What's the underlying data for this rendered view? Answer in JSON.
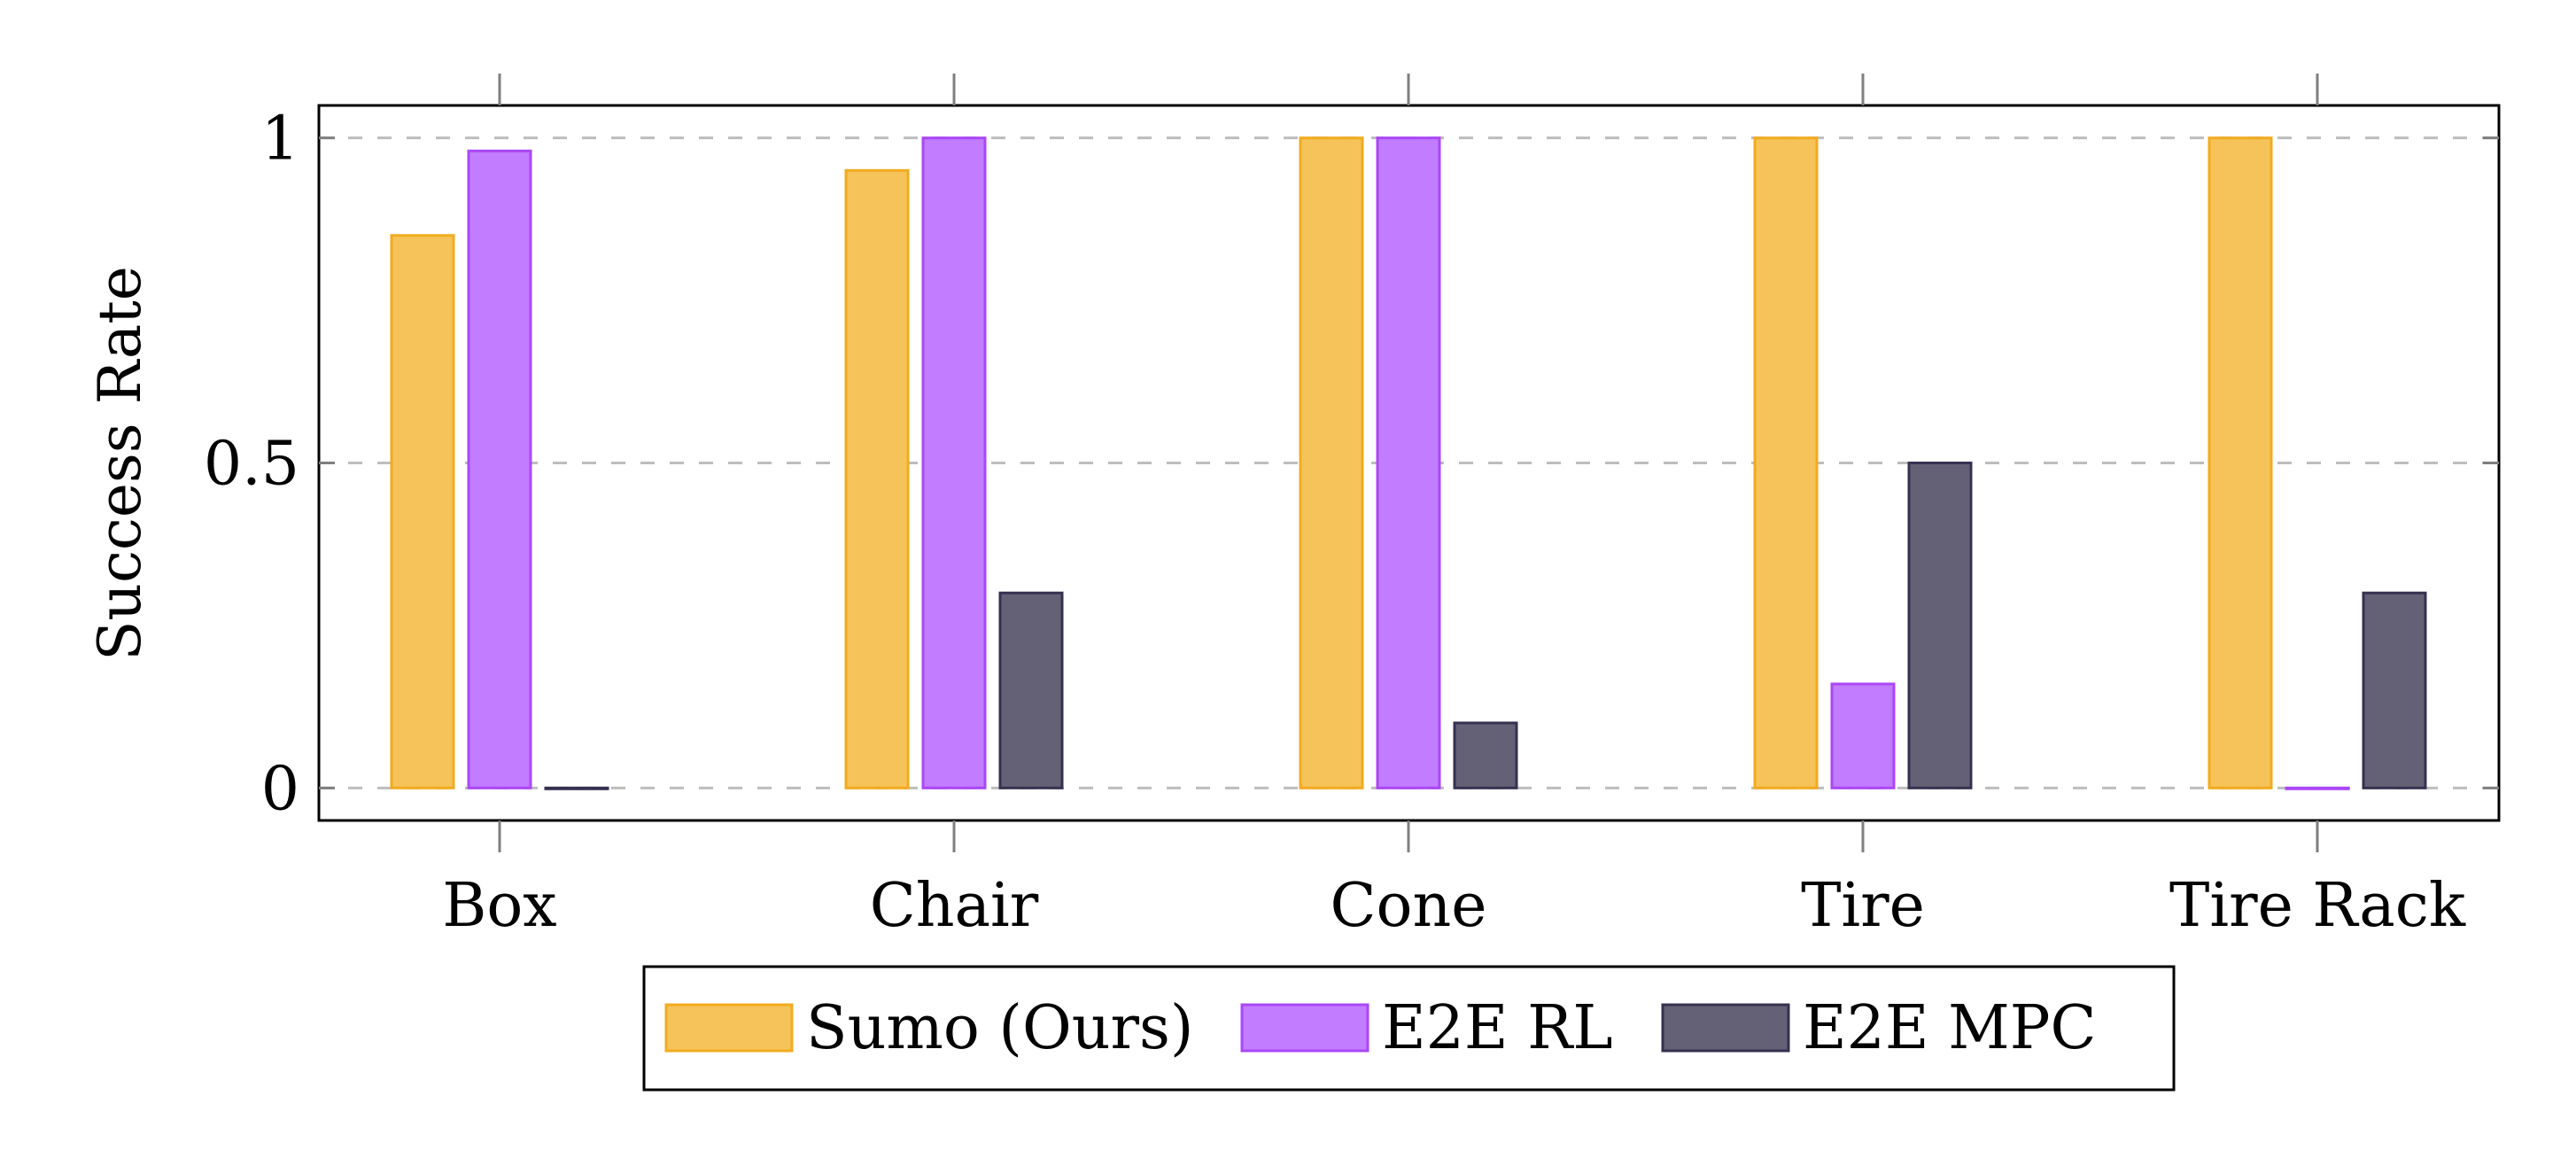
{
  "chart_data": {
    "type": "bar",
    "title": "",
    "xlabel": "",
    "ylabel": "Success Rate",
    "ylim": [
      -0.05,
      1.05
    ],
    "yticks": [
      0,
      0.5,
      1
    ],
    "ytick_labels": [
      "0",
      "0.5",
      "1"
    ],
    "grid": "horizontal dashed",
    "legend_position": "bottom",
    "categories": [
      "Box",
      "Chair",
      "Cone",
      "Tire",
      "Tire Rack"
    ],
    "series": [
      {
        "name": "Sumo (Ours)",
        "values": [
          0.85,
          0.95,
          1.0,
          1.0,
          1.0
        ],
        "fill": "#f5c35a",
        "stroke": "#f2ab1f"
      },
      {
        "name": "E2E RL",
        "values": [
          0.98,
          1.0,
          1.0,
          0.16,
          0.0
        ],
        "fill": "#c17cff",
        "stroke": "#ab47f7"
      },
      {
        "name": "E2E MPC",
        "values": [
          0.0,
          0.3,
          0.1,
          0.5,
          0.3
        ],
        "fill": "#646075",
        "stroke": "#353250"
      }
    ]
  }
}
